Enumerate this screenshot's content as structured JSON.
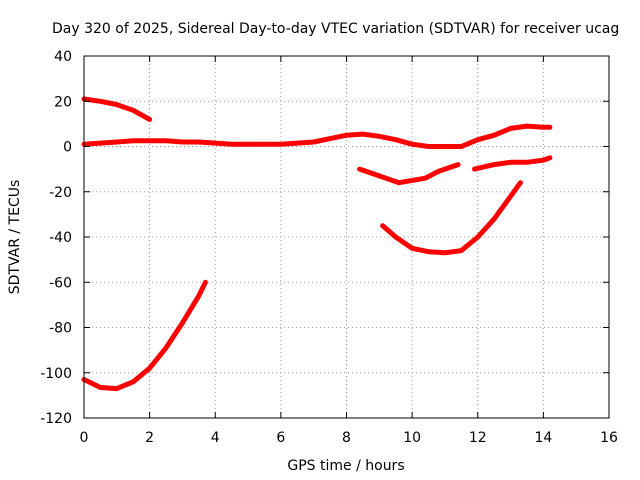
{
  "chart_data": {
    "type": "scatter",
    "title": "Day 320 of 2025, Sidereal Day-to-day VTEC variation (SDTVAR) for receiver ucag",
    "xlabel": "GPS time / hours",
    "ylabel": "SDTVAR / TECUs",
    "xlim": [
      0,
      16
    ],
    "ylim": [
      -120,
      40
    ],
    "xticks": [
      0,
      2,
      4,
      6,
      8,
      10,
      12,
      14,
      16
    ],
    "yticks": [
      40,
      20,
      0,
      -20,
      -40,
      -60,
      -80,
      -100,
      -120
    ],
    "grid": true,
    "legend": "none",
    "series_color": "#ff0000",
    "series": [
      {
        "name": "arc-top-left",
        "x": [
          0.0,
          0.5,
          1.0,
          1.5,
          2.0
        ],
        "y": [
          21,
          20,
          18.5,
          16,
          12
        ]
      },
      {
        "name": "arc-near-zero-1",
        "x": [
          0.0,
          0.5,
          1.0,
          1.5,
          2.0,
          2.5,
          3.0,
          3.5,
          4.0,
          4.5,
          5.0
        ],
        "y": [
          1,
          1.5,
          2,
          2.5,
          2.5,
          2.5,
          2,
          2,
          1.5,
          1,
          1
        ]
      },
      {
        "name": "arc-near-zero-2",
        "x": [
          5.0,
          6.0,
          7.0,
          7.5,
          8.0,
          8.5,
          9.0,
          9.5,
          10.0,
          10.5,
          11.0,
          11.5
        ],
        "y": [
          1,
          1,
          2,
          3.5,
          5,
          5.5,
          4.5,
          3,
          1,
          0,
          0,
          0
        ]
      },
      {
        "name": "arc-near-zero-3",
        "x": [
          11.5,
          12.0,
          12.5,
          13.0,
          13.5,
          14.0,
          14.2
        ],
        "y": [
          0,
          3,
          5,
          8,
          9,
          8.5,
          8.5
        ]
      },
      {
        "name": "arc-minus-10",
        "x": [
          8.4,
          8.8,
          9.2,
          9.6,
          10.0,
          10.4,
          10.8,
          11.4
        ],
        "y": [
          -10,
          -12,
          -14,
          -16,
          -15,
          -14,
          -11,
          -8
        ]
      },
      {
        "name": "arc-minus-7",
        "x": [
          11.9,
          12.5,
          13.0,
          13.5,
          14.0,
          14.2
        ],
        "y": [
          -10,
          -8,
          -7,
          -7,
          -6,
          -5
        ]
      },
      {
        "name": "arc-bowl",
        "x": [
          9.1,
          9.5,
          10.0,
          10.5,
          11.0,
          11.5,
          12.0,
          12.5,
          13.0,
          13.3
        ],
        "y": [
          -35,
          -40,
          -45,
          -46.5,
          -47,
          -46,
          -40,
          -32,
          -22,
          -16
        ]
      },
      {
        "name": "arc-bottom-left",
        "x": [
          0.0,
          0.5,
          1.0,
          1.5,
          2.0,
          2.5,
          3.0,
          3.5,
          3.7
        ],
        "y": [
          -103,
          -106.5,
          -107,
          -104,
          -98,
          -89,
          -78,
          -66,
          -60
        ]
      }
    ]
  }
}
